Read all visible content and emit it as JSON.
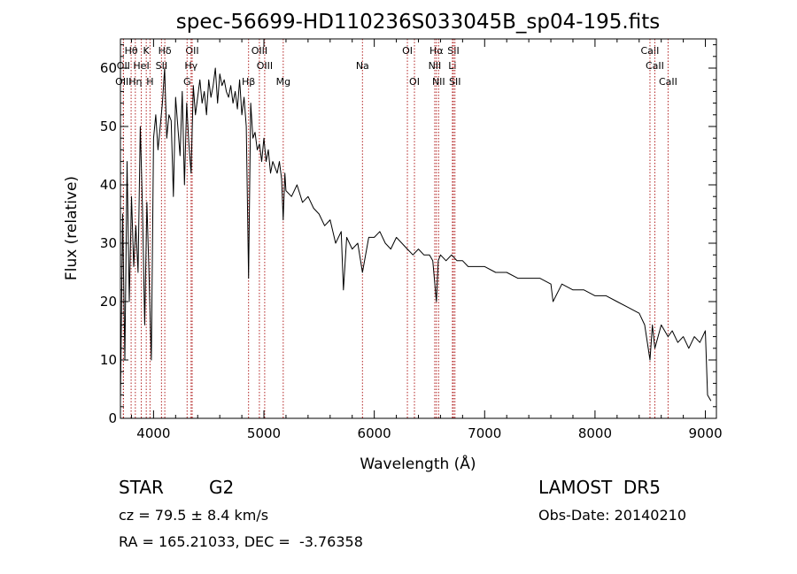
{
  "chart_data": {
    "type": "line",
    "title": "spec-56699-HD110236S033045B_sp04-195.fits",
    "xlabel": "Wavelength (Å)",
    "ylabel": "Flux (relative)",
    "xlim": [
      3700,
      9100
    ],
    "ylim": [
      0,
      65
    ],
    "xticks": [
      4000,
      5000,
      6000,
      7000,
      8000,
      9000
    ],
    "yticks": [
      0,
      10,
      20,
      30,
      40,
      50,
      60
    ],
    "grid": false,
    "line_color": "#000000",
    "marker_color": "#b22222",
    "series": [
      {
        "x": [
          3700,
          3720,
          3740,
          3760,
          3780,
          3800,
          3820,
          3840,
          3860,
          3880,
          3900,
          3920,
          3940,
          3960,
          3980,
          4000,
          4020,
          4040,
          4060,
          4080,
          4100,
          4120,
          4140,
          4160,
          4180,
          4200,
          4220,
          4240,
          4260,
          4280,
          4300,
          4320,
          4340,
          4360,
          4380,
          4400,
          4420,
          4440,
          4460,
          4480,
          4500,
          4520,
          4540,
          4560,
          4580,
          4600,
          4620,
          4640,
          4660,
          4680,
          4700,
          4720,
          4740,
          4760,
          4780,
          4800,
          4820,
          4840,
          4861,
          4880,
          4900,
          4920,
          4940,
          4960,
          4980,
          5000,
          5020,
          5040,
          5060,
          5080,
          5100,
          5120,
          5140,
          5160,
          5175,
          5190,
          5200,
          5250,
          5300,
          5350,
          5400,
          5450,
          5500,
          5550,
          5600,
          5650,
          5700,
          5720,
          5750,
          5800,
          5850,
          5893,
          5950,
          6000,
          6050,
          6100,
          6150,
          6200,
          6250,
          6300,
          6350,
          6400,
          6450,
          6500,
          6530,
          6563,
          6580,
          6600,
          6650,
          6700,
          6750,
          6800,
          6850,
          6900,
          6950,
          7000,
          7100,
          7200,
          7300,
          7400,
          7500,
          7600,
          7620,
          7700,
          7800,
          7900,
          8000,
          8100,
          8200,
          8300,
          8400,
          8450,
          8498,
          8520,
          8542,
          8600,
          8662,
          8700,
          8750,
          8800,
          8850,
          8900,
          8950,
          9000,
          9020,
          9050
        ],
        "y": [
          3,
          35,
          10,
          44,
          20,
          38,
          26,
          33,
          25,
          50,
          36,
          16,
          37,
          24,
          10,
          48,
          52,
          46,
          50,
          54,
          60,
          48,
          52,
          51,
          38,
          55,
          50,
          45,
          56,
          40,
          54,
          47,
          42,
          57,
          52,
          55,
          58,
          54,
          56,
          52,
          58,
          55,
          57,
          60,
          54,
          59,
          57,
          58,
          56,
          55,
          57,
          54,
          56,
          53,
          58,
          52,
          55,
          50,
          24,
          54,
          48,
          49,
          46,
          47,
          44,
          48,
          44,
          46,
          42,
          44,
          43,
          42,
          44,
          41,
          34,
          42,
          39,
          38,
          40,
          37,
          38,
          36,
          35,
          33,
          34,
          30,
          32,
          22,
          31,
          29,
          30,
          25,
          31,
          31,
          32,
          30,
          29,
          31,
          30,
          29,
          28,
          29,
          28,
          28,
          27,
          20,
          27,
          28,
          27,
          28,
          27,
          27,
          26,
          26,
          26,
          26,
          25,
          25,
          24,
          24,
          24,
          23,
          20,
          23,
          22,
          22,
          21,
          21,
          20,
          19,
          18,
          16,
          10,
          16,
          12,
          16,
          14,
          15,
          13,
          14,
          12,
          14,
          13,
          15,
          4,
          3
        ]
      }
    ],
    "spectral_lines": [
      {
        "label": "Hθ",
        "x": 3797,
        "row": 1
      },
      {
        "label": "K",
        "x": 3934,
        "row": 1
      },
      {
        "label": "Hδ",
        "x": 4102,
        "row": 1
      },
      {
        "label": "OII",
        "x": 4350,
        "row": 1
      },
      {
        "label": "OIII",
        "x": 4959,
        "row": 1
      },
      {
        "label": "OI",
        "x": 6300,
        "row": 1
      },
      {
        "label": "Hα",
        "x": 6563,
        "row": 1
      },
      {
        "label": "SII",
        "x": 6717,
        "row": 1
      },
      {
        "label": "CaII",
        "x": 8498,
        "row": 1
      },
      {
        "label": "OII",
        "x": 3727,
        "row": 2
      },
      {
        "label": "HeI",
        "x": 3889,
        "row": 2
      },
      {
        "label": "SII",
        "x": 4072,
        "row": 2
      },
      {
        "label": "Hγ",
        "x": 4340,
        "row": 2
      },
      {
        "label": "OIII",
        "x": 5007,
        "row": 2
      },
      {
        "label": "Na",
        "x": 5893,
        "row": 2
      },
      {
        "label": "NII",
        "x": 6548,
        "row": 2
      },
      {
        "label": "Li",
        "x": 6708,
        "row": 2
      },
      {
        "label": "CaII",
        "x": 8542,
        "row": 2
      },
      {
        "label": "OIII",
        "x": 3727,
        "row": 3
      },
      {
        "label": "Hη",
        "x": 3835,
        "row": 3
      },
      {
        "label": "H",
        "x": 3968,
        "row": 3
      },
      {
        "label": "G",
        "x": 4304,
        "row": 3
      },
      {
        "label": "Hβ",
        "x": 4861,
        "row": 3
      },
      {
        "label": "Mg",
        "x": 5175,
        "row": 3
      },
      {
        "label": "OI",
        "x": 6364,
        "row": 3
      },
      {
        "label": "NII",
        "x": 6583,
        "row": 3
      },
      {
        "label": "SII",
        "x": 6731,
        "row": 3
      },
      {
        "label": "CaII",
        "x": 8662,
        "row": 3
      }
    ]
  },
  "info": {
    "object_class": "STAR",
    "subclass": "G2",
    "survey": "LAMOST  DR5",
    "redshift": "cz = 79.5 ± 8.4 km/s",
    "obs_date": "Obs-Date: 20140210",
    "coords": "RA = 165.21033, DEC =  -3.76358"
  }
}
